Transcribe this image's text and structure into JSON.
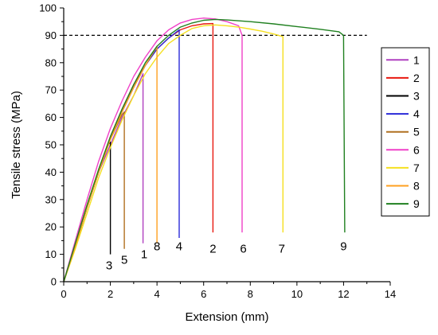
{
  "chart_data": {
    "type": "line",
    "xlabel": "Extension (mm)",
    "ylabel": "Tensile stress (MPa)",
    "xlim": [
      0,
      14
    ],
    "ylim": [
      0,
      100
    ],
    "xticks": [
      "0",
      "2",
      "4",
      "6",
      "8",
      "10",
      "12",
      "14"
    ],
    "yticks": [
      "0",
      "10",
      "20",
      "30",
      "40",
      "50",
      "60",
      "70",
      "80",
      "90",
      "100"
    ],
    "reference_line": {
      "y": 90,
      "x_end": 13,
      "style": "dashed"
    },
    "legend": {
      "position": "right",
      "entries": [
        "1",
        "2",
        "3",
        "4",
        "5",
        "6",
        "7",
        "8",
        "9"
      ]
    },
    "series": [
      {
        "name": "1",
        "color": "#b040c0",
        "label_text": "1",
        "label_at": [
          3.45,
          10
        ],
        "points": [
          [
            0,
            0
          ],
          [
            0.5,
            13
          ],
          [
            1,
            27
          ],
          [
            1.5,
            40
          ],
          [
            2,
            50
          ],
          [
            2.5,
            60
          ],
          [
            3,
            68
          ],
          [
            3.4,
            76
          ],
          [
            3.4,
            14
          ]
        ]
      },
      {
        "name": "2",
        "color": "#e8180f",
        "label_text": "2",
        "label_at": [
          6.4,
          12
        ],
        "points": [
          [
            0,
            0
          ],
          [
            0.5,
            14
          ],
          [
            1,
            28
          ],
          [
            1.5,
            41
          ],
          [
            2,
            53
          ],
          [
            2.5,
            63
          ],
          [
            3,
            72
          ],
          [
            3.5,
            79
          ],
          [
            4,
            85
          ],
          [
            4.5,
            89
          ],
          [
            5,
            92
          ],
          [
            5.5,
            93.5
          ],
          [
            6,
            94.2
          ],
          [
            6.4,
            94.3
          ],
          [
            6.4,
            18
          ]
        ]
      },
      {
        "name": "3",
        "color": "#000000",
        "label_text": "3",
        "label_at": [
          1.95,
          6
        ],
        "points": [
          [
            0,
            0
          ],
          [
            0.5,
            13
          ],
          [
            1,
            27
          ],
          [
            1.5,
            40
          ],
          [
            1.9,
            50
          ],
          [
            2,
            51
          ],
          [
            2,
            10
          ]
        ]
      },
      {
        "name": "4",
        "color": "#2a2ad8",
        "label_text": "4",
        "label_at": [
          4.95,
          13
        ],
        "points": [
          [
            0,
            0
          ],
          [
            0.5,
            13
          ],
          [
            1,
            27
          ],
          [
            1.5,
            40
          ],
          [
            2,
            52
          ],
          [
            2.5,
            62
          ],
          [
            3,
            71
          ],
          [
            3.5,
            79
          ],
          [
            4,
            85
          ],
          [
            4.5,
            89
          ],
          [
            4.95,
            92
          ],
          [
            4.95,
            16
          ]
        ]
      },
      {
        "name": "5",
        "color": "#b07020",
        "label_text": "5",
        "label_at": [
          2.6,
          8
        ],
        "points": [
          [
            0,
            0
          ],
          [
            0.5,
            13
          ],
          [
            1,
            27
          ],
          [
            1.5,
            40
          ],
          [
            2,
            52
          ],
          [
            2.5,
            61
          ],
          [
            2.6,
            62
          ],
          [
            2.6,
            12
          ]
        ]
      },
      {
        "name": "6",
        "color": "#f040c8",
        "label_text": "6",
        "label_at": [
          7.7,
          12
        ],
        "points": [
          [
            0,
            0
          ],
          [
            0.5,
            15
          ],
          [
            1,
            30
          ],
          [
            1.5,
            44
          ],
          [
            2,
            56
          ],
          [
            2.5,
            66
          ],
          [
            3,
            75
          ],
          [
            3.5,
            82
          ],
          [
            4,
            88
          ],
          [
            4.5,
            92
          ],
          [
            5,
            94.5
          ],
          [
            5.5,
            95.8
          ],
          [
            6,
            96.3
          ],
          [
            6.5,
            96
          ],
          [
            7,
            95
          ],
          [
            7.5,
            93.5
          ],
          [
            7.65,
            90
          ],
          [
            7.65,
            18
          ]
        ]
      },
      {
        "name": "7",
        "color": "#f5e020",
        "label_text": "7",
        "label_at": [
          9.35,
          12
        ],
        "points": [
          [
            0,
            0
          ],
          [
            0.5,
            12
          ],
          [
            1,
            25
          ],
          [
            1.5,
            38
          ],
          [
            2,
            49
          ],
          [
            2.5,
            59
          ],
          [
            3,
            68
          ],
          [
            3.5,
            76
          ],
          [
            4,
            82
          ],
          [
            4.5,
            87
          ],
          [
            5,
            90
          ],
          [
            5.5,
            92.5
          ],
          [
            6,
            93.5
          ],
          [
            6.5,
            93.8
          ],
          [
            7,
            93.5
          ],
          [
            7.5,
            93
          ],
          [
            8,
            92.3
          ],
          [
            8.5,
            91.5
          ],
          [
            9,
            90.5
          ],
          [
            9.4,
            89.5
          ],
          [
            9.4,
            18
          ]
        ]
      },
      {
        "name": "8",
        "color": "#ffa020",
        "label_text": "8",
        "label_at": [
          4.0,
          13
        ],
        "points": [
          [
            0,
            0
          ],
          [
            0.5,
            13
          ],
          [
            1,
            27
          ],
          [
            1.5,
            40
          ],
          [
            2,
            52
          ],
          [
            2.5,
            62
          ],
          [
            3,
            71
          ],
          [
            3.5,
            79
          ],
          [
            4,
            86
          ],
          [
            4,
            14
          ]
        ]
      },
      {
        "name": "9",
        "color": "#208020",
        "label_text": "9",
        "label_at": [
          12.0,
          13
        ],
        "points": [
          [
            0,
            0
          ],
          [
            0.5,
            14
          ],
          [
            1,
            28
          ],
          [
            1.5,
            41
          ],
          [
            2,
            53
          ],
          [
            2.5,
            63
          ],
          [
            3,
            72
          ],
          [
            3.5,
            80
          ],
          [
            4,
            86
          ],
          [
            4.5,
            90
          ],
          [
            5,
            93
          ],
          [
            5.5,
            94.5
          ],
          [
            6,
            95.5
          ],
          [
            6.5,
            95.8
          ],
          [
            7,
            95.6
          ],
          [
            8,
            95
          ],
          [
            9,
            94.2
          ],
          [
            10,
            93.2
          ],
          [
            11,
            92.2
          ],
          [
            11.8,
            91.3
          ],
          [
            12,
            90
          ],
          [
            12.05,
            18
          ]
        ]
      }
    ]
  }
}
